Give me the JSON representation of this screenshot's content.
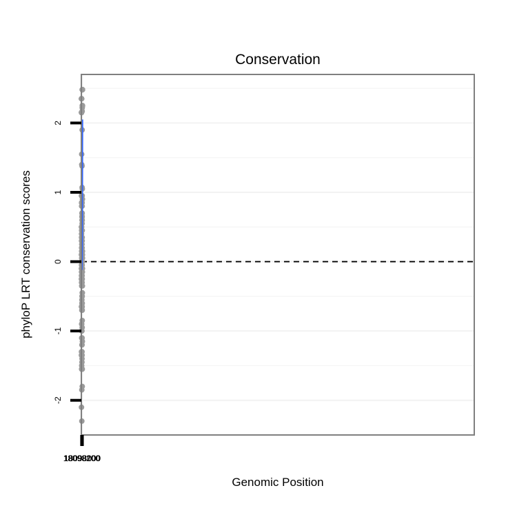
{
  "chart_data": {
    "type": "scatter",
    "title": "Conservation",
    "xlabel": "Genomic Position",
    "ylabel": "phyloP LRT conservation scores",
    "x_reversed": true,
    "xlim": [
      18098270,
      17997970
    ],
    "ylim": [
      -2.5,
      2.7
    ],
    "x_ticks": [
      18098200,
      18098100,
      18098000
    ],
    "x_tick_labels": [
      "18098200",
      "18098100",
      "18098000"
    ],
    "y_ticks": [
      -2,
      -1,
      0,
      1,
      2
    ],
    "y_tick_labels": [
      "-2",
      "-1",
      "0",
      "1",
      "2"
    ],
    "grid": true,
    "reference_line": {
      "y": 0,
      "style": "dashed"
    },
    "colors": {
      "points": "#9a9a9a",
      "smooth_line": "#3366ff",
      "confidence_band": "#d2d2d2",
      "grid": "#f2f2f2",
      "panel_border": "#7f7f7f"
    },
    "points": [
      {
        "x": 18098253,
        "y": -0.25
      },
      {
        "x": 18098250,
        "y": 0.5
      },
      {
        "x": 18098247,
        "y": -0.1
      },
      {
        "x": 18098246,
        "y": -1.35
      },
      {
        "x": 18098244,
        "y": 0.1
      },
      {
        "x": 18098243,
        "y": 0.95
      },
      {
        "x": 18098242,
        "y": -0.2
      },
      {
        "x": 18098240,
        "y": 2.35
      },
      {
        "x": 18098238,
        "y": 2.35
      },
      {
        "x": 18098236,
        "y": 2.35
      },
      {
        "x": 18098234,
        "y": 2.35
      },
      {
        "x": 18098239,
        "y": -0.25
      },
      {
        "x": 18098233,
        "y": -0.65
      },
      {
        "x": 18098232,
        "y": 2.15
      },
      {
        "x": 18098230,
        "y": 2.15
      },
      {
        "x": 18098230,
        "y": -1.3
      },
      {
        "x": 18098229,
        "y": 2.35
      },
      {
        "x": 18098228,
        "y": 2.15
      },
      {
        "x": 18098227,
        "y": -2.1
      },
      {
        "x": 18098226,
        "y": -0.15
      },
      {
        "x": 18098224,
        "y": 2.15
      },
      {
        "x": 18098224,
        "y": -0.65
      },
      {
        "x": 18098223,
        "y": 2.35
      },
      {
        "x": 18098221,
        "y": 2.35
      },
      {
        "x": 18098220,
        "y": -0.05
      },
      {
        "x": 18098219,
        "y": 2.35
      },
      {
        "x": 18098218,
        "y": 0.4
      },
      {
        "x": 18098217,
        "y": 2.35
      },
      {
        "x": 18098215,
        "y": 2.35
      },
      {
        "x": 18098214,
        "y": -0.3
      },
      {
        "x": 18098213,
        "y": 2.35
      },
      {
        "x": 18098211,
        "y": 2.35
      },
      {
        "x": 18098211,
        "y": 0.35
      },
      {
        "x": 18098209,
        "y": 2.35
      },
      {
        "x": 18098209,
        "y": 0.3
      },
      {
        "x": 18098207,
        "y": 2.35
      },
      {
        "x": 18098207,
        "y": -0.15
      },
      {
        "x": 18098205,
        "y": 0.5
      },
      {
        "x": 18098203,
        "y": 0.95
      },
      {
        "x": 18098203,
        "y": 0.5
      },
      {
        "x": 18098202,
        "y": 0.2
      },
      {
        "x": 18098201,
        "y": -1.0
      },
      {
        "x": 18098200,
        "y": 0.35
      },
      {
        "x": 18098199,
        "y": 0.45
      },
      {
        "x": 18098198,
        "y": -0.05
      },
      {
        "x": 18098197,
        "y": 0.85
      },
      {
        "x": 18098196,
        "y": 0.3
      },
      {
        "x": 18098195,
        "y": 0.85
      },
      {
        "x": 18098194,
        "y": 0.8
      },
      {
        "x": 18098193,
        "y": 0.15
      },
      {
        "x": 18098192,
        "y": -1.55
      },
      {
        "x": 18098191,
        "y": -1.3
      },
      {
        "x": 18098190,
        "y": -0.35
      },
      {
        "x": 18098188,
        "y": 0.0
      },
      {
        "x": 18098187,
        "y": -1.5
      },
      {
        "x": 18098186,
        "y": -0.3
      },
      {
        "x": 18098185,
        "y": -0.9
      },
      {
        "x": 18098184,
        "y": -1.1
      },
      {
        "x": 18098183,
        "y": 0.05
      },
      {
        "x": 18098182,
        "y": 0.3
      },
      {
        "x": 18098181,
        "y": 0.35
      },
      {
        "x": 18098180,
        "y": 1.55
      },
      {
        "x": 18098180,
        "y": 0.0
      },
      {
        "x": 18098179,
        "y": 0.45
      },
      {
        "x": 18098178,
        "y": -0.9
      },
      {
        "x": 18098177,
        "y": 0.1
      },
      {
        "x": 18098176,
        "y": -0.05
      },
      {
        "x": 18098175,
        "y": 0.2
      },
      {
        "x": 18098174,
        "y": -0.1
      },
      {
        "x": 18098173,
        "y": 0.1
      },
      {
        "x": 18098172,
        "y": 1.4
      },
      {
        "x": 18098171,
        "y": -0.1
      },
      {
        "x": 18098170,
        "y": 0.1
      },
      {
        "x": 18098168,
        "y": 0.85
      },
      {
        "x": 18098167,
        "y": 0.85
      },
      {
        "x": 18098166,
        "y": 0.85
      },
      {
        "x": 18098165,
        "y": -1.55
      },
      {
        "x": 18098164,
        "y": 0.1
      },
      {
        "x": 18098162,
        "y": 0.2
      },
      {
        "x": 18098160,
        "y": 0.35
      },
      {
        "x": 18098159,
        "y": 0.25
      },
      {
        "x": 18098158,
        "y": -0.65
      },
      {
        "x": 18098157,
        "y": 0.35
      },
      {
        "x": 18098156,
        "y": 0.35
      },
      {
        "x": 18098155,
        "y": 0.35
      },
      {
        "x": 18098154,
        "y": 0.35
      },
      {
        "x": 18098153,
        "y": 0.35
      },
      {
        "x": 18098152,
        "y": 0.35
      },
      {
        "x": 18098151,
        "y": 0.35
      },
      {
        "x": 18098150,
        "y": -1.85
      },
      {
        "x": 18098148,
        "y": 0.35
      },
      {
        "x": 18098147,
        "y": -0.65
      },
      {
        "x": 18098146,
        "y": 0.35
      },
      {
        "x": 18098145,
        "y": -0.05
      },
      {
        "x": 18098144,
        "y": 0.35
      },
      {
        "x": 18098143,
        "y": 0.35
      },
      {
        "x": 18098142,
        "y": 0.35
      },
      {
        "x": 18098141,
        "y": 0.35
      },
      {
        "x": 18098140,
        "y": -0.7
      },
      {
        "x": 18098139,
        "y": -2.3
      },
      {
        "x": 18098138,
        "y": 0.35
      },
      {
        "x": 18098137,
        "y": 0.35
      },
      {
        "x": 18098136,
        "y": 0.35
      },
      {
        "x": 18098135,
        "y": -0.65
      },
      {
        "x": 18098134,
        "y": 0.35
      },
      {
        "x": 18098133,
        "y": 0.35
      },
      {
        "x": 18098132,
        "y": -0.6
      },
      {
        "x": 18098130,
        "y": 0.35
      },
      {
        "x": 18098128,
        "y": 0.2
      },
      {
        "x": 18098127,
        "y": 0.2
      },
      {
        "x": 18098126,
        "y": 0.2
      },
      {
        "x": 18098125,
        "y": 0.2
      },
      {
        "x": 18098124,
        "y": 0.2
      },
      {
        "x": 18098123,
        "y": 0.2
      },
      {
        "x": 18098122,
        "y": -0.55
      },
      {
        "x": 18098121,
        "y": 0.2
      },
      {
        "x": 18098120,
        "y": 0.35
      },
      {
        "x": 18098119,
        "y": -0.05
      },
      {
        "x": 18098118,
        "y": -1.45
      },
      {
        "x": 18098117,
        "y": -0.15
      },
      {
        "x": 18098116,
        "y": -0.25
      },
      {
        "x": 18098115,
        "y": 0.2
      },
      {
        "x": 18098114,
        "y": -0.3
      },
      {
        "x": 18098113,
        "y": -1.35
      },
      {
        "x": 18098112,
        "y": -0.35
      },
      {
        "x": 18098111,
        "y": -0.1
      },
      {
        "x": 18098110,
        "y": 0.65
      },
      {
        "x": 18098109,
        "y": -0.15
      },
      {
        "x": 18098108,
        "y": 0.7
      },
      {
        "x": 18098107,
        "y": -0.2
      },
      {
        "x": 18098106,
        "y": -1.2
      },
      {
        "x": 18098105,
        "y": -1.2
      },
      {
        "x": 18098104,
        "y": -1.0
      },
      {
        "x": 18098103,
        "y": -0.15
      },
      {
        "x": 18098102,
        "y": -1.3
      },
      {
        "x": 18098101,
        "y": 0.7
      },
      {
        "x": 18098100,
        "y": -0.1
      },
      {
        "x": 18098099,
        "y": 0.7
      },
      {
        "x": 18098098,
        "y": -0.1
      },
      {
        "x": 18098097,
        "y": -1.4
      },
      {
        "x": 18098096,
        "y": 0.85
      },
      {
        "x": 18098095,
        "y": -0.1
      },
      {
        "x": 18098094,
        "y": -0.65
      },
      {
        "x": 18098093,
        "y": 1.38
      },
      {
        "x": 18098092,
        "y": -1.35
      },
      {
        "x": 18098091,
        "y": 0.25
      },
      {
        "x": 18098090,
        "y": 0.85
      },
      {
        "x": 18098089,
        "y": -0.05
      },
      {
        "x": 18098088,
        "y": 0.65
      },
      {
        "x": 18098087,
        "y": -0.1
      },
      {
        "x": 18098086,
        "y": 0.65
      },
      {
        "x": 18098085,
        "y": -0.05
      },
      {
        "x": 18098084,
        "y": 0.6
      },
      {
        "x": 18098083,
        "y": -1.1
      },
      {
        "x": 18098082,
        "y": 0.65
      },
      {
        "x": 18098081,
        "y": -0.3
      },
      {
        "x": 18098080,
        "y": 0.55
      },
      {
        "x": 18098079,
        "y": -0.2
      },
      {
        "x": 18098078,
        "y": 0.65
      },
      {
        "x": 18098077,
        "y": 0.65
      },
      {
        "x": 18098076,
        "y": -0.05
      },
      {
        "x": 18098075,
        "y": 0.6
      },
      {
        "x": 18098074,
        "y": 1.07
      },
      {
        "x": 18098073,
        "y": -0.5
      },
      {
        "x": 18098072,
        "y": 0.0
      },
      {
        "x": 18098071,
        "y": 0.6
      },
      {
        "x": 18098070,
        "y": 0.15
      },
      {
        "x": 18098069,
        "y": -0.5
      },
      {
        "x": 18098068,
        "y": 0.85
      },
      {
        "x": 18098067,
        "y": 0.05
      },
      {
        "x": 18098066,
        "y": 0.7
      },
      {
        "x": 18098065,
        "y": 0.35
      },
      {
        "x": 18098064,
        "y": 0.95
      },
      {
        "x": 18098063,
        "y": 0.15
      },
      {
        "x": 18098062,
        "y": 0.8
      },
      {
        "x": 18098061,
        "y": 0.05
      },
      {
        "x": 18098060,
        "y": 2.17
      },
      {
        "x": 18098059,
        "y": 0.15
      },
      {
        "x": 18098058,
        "y": -0.65
      },
      {
        "x": 18098057,
        "y": -0.95
      },
      {
        "x": 18098056,
        "y": 0.05
      },
      {
        "x": 18098055,
        "y": 0.6
      },
      {
        "x": 18098054,
        "y": 1.9
      },
      {
        "x": 18098053,
        "y": -1.55
      },
      {
        "x": 18098052,
        "y": -0.5
      },
      {
        "x": 18098051,
        "y": 0.3
      },
      {
        "x": 18098050,
        "y": -0.25
      },
      {
        "x": 18098049,
        "y": -1.55
      },
      {
        "x": 18098048,
        "y": -1.8
      },
      {
        "x": 18098047,
        "y": 0.0
      },
      {
        "x": 18098046,
        "y": 2.22
      },
      {
        "x": 18098045,
        "y": -0.45
      },
      {
        "x": 18098044,
        "y": 0.1
      },
      {
        "x": 18098043,
        "y": -0.6
      },
      {
        "x": 18098042,
        "y": -0.1
      },
      {
        "x": 18098041,
        "y": -0.7
      },
      {
        "x": 18098040,
        "y": -0.85
      },
      {
        "x": 18098039,
        "y": 0.15
      },
      {
        "x": 18098038,
        "y": 0.45
      },
      {
        "x": 18098037,
        "y": 0.15
      },
      {
        "x": 18098036,
        "y": 2.48
      },
      {
        "x": 18098035,
        "y": 0.05
      },
      {
        "x": 18098034,
        "y": 2.48
      },
      {
        "x": 18098033,
        "y": 0.1
      },
      {
        "x": 18098032,
        "y": 1.05
      },
      {
        "x": 18098031,
        "y": 2.48
      },
      {
        "x": 18098030,
        "y": 0.15
      },
      {
        "x": 18098029,
        "y": 2.25
      },
      {
        "x": 18098028,
        "y": 2.48
      },
      {
        "x": 18098027,
        "y": 0.15
      },
      {
        "x": 18098026,
        "y": 0.05
      },
      {
        "x": 18098025,
        "y": 2.48
      },
      {
        "x": 18098024,
        "y": 0.15
      },
      {
        "x": 18098023,
        "y": 2.25
      },
      {
        "x": 18098022,
        "y": 0.1
      },
      {
        "x": 18098021,
        "y": 2.25
      },
      {
        "x": 18098020,
        "y": -0.45
      },
      {
        "x": 18098019,
        "y": 2.48
      },
      {
        "x": 18098018,
        "y": 0.15
      },
      {
        "x": 18098017,
        "y": 0.05
      },
      {
        "x": 18098015,
        "y": 0.15
      },
      {
        "x": 18098014,
        "y": 0.05
      },
      {
        "x": 18098013,
        "y": 2.48
      },
      {
        "x": 18098012,
        "y": 0.1
      },
      {
        "x": 18098011,
        "y": 2.48
      },
      {
        "x": 18098010,
        "y": 0.05
      },
      {
        "x": 18098009,
        "y": 2.48
      },
      {
        "x": 18098008,
        "y": 2.25
      },
      {
        "x": 18098006,
        "y": -1.15
      },
      {
        "x": 18098005,
        "y": 2.48
      },
      {
        "x": 18098004,
        "y": -0.35
      },
      {
        "x": 18098003,
        "y": 2.25
      },
      {
        "x": 18098002,
        "y": 2.48
      },
      {
        "x": 18098000,
        "y": 2.25
      },
      {
        "x": 18097999,
        "y": 2.48
      },
      {
        "x": 18097998,
        "y": -0.15
      },
      {
        "x": 18097997,
        "y": 2.25
      },
      {
        "x": 18097996,
        "y": -0.1
      },
      {
        "x": 18097995,
        "y": 2.48
      },
      {
        "x": 18097994,
        "y": 2.25
      },
      {
        "x": 18097993,
        "y": 2.48
      },
      {
        "x": 18097992,
        "y": 0.9
      },
      {
        "x": 18097991,
        "y": 2.48
      },
      {
        "x": 18097990,
        "y": 2.25
      },
      {
        "x": 18097989,
        "y": 2.48
      },
      {
        "x": 18097988,
        "y": 2.25
      }
    ],
    "smooth": {
      "x": [
        18098253,
        18098240,
        18098225,
        18098210,
        18098195,
        18098180,
        18098170,
        18098160,
        18098150,
        18098140,
        18098130,
        18098120,
        18098110,
        18098100,
        18098090,
        18098080,
        18098070,
        18098060,
        18098050,
        18098040,
        18098030,
        18098020,
        18098010,
        18098000,
        18097990,
        18097985
      ],
      "y": [
        0.85,
        0.72,
        0.6,
        0.48,
        0.35,
        0.22,
        0.1,
        -0.02,
        -0.1,
        -0.12,
        -0.1,
        -0.07,
        -0.06,
        -0.05,
        -0.02,
        0.03,
        0.1,
        0.2,
        0.36,
        0.55,
        0.78,
        1.05,
        1.32,
        1.6,
        1.88,
        2.05
      ],
      "lower": [
        0.45,
        0.48,
        0.44,
        0.36,
        0.25,
        0.12,
        0.0,
        -0.12,
        -0.19,
        -0.21,
        -0.19,
        -0.16,
        -0.15,
        -0.14,
        -0.11,
        -0.06,
        0.0,
        0.1,
        0.25,
        0.42,
        0.62,
        0.85,
        1.08,
        1.3,
        1.53,
        1.67
      ],
      "upper": [
        1.25,
        0.96,
        0.76,
        0.6,
        0.45,
        0.32,
        0.2,
        0.08,
        -0.01,
        -0.03,
        -0.01,
        0.02,
        0.03,
        0.04,
        0.07,
        0.12,
        0.2,
        0.3,
        0.47,
        0.68,
        0.94,
        1.25,
        1.56,
        1.9,
        2.23,
        2.43
      ]
    }
  }
}
